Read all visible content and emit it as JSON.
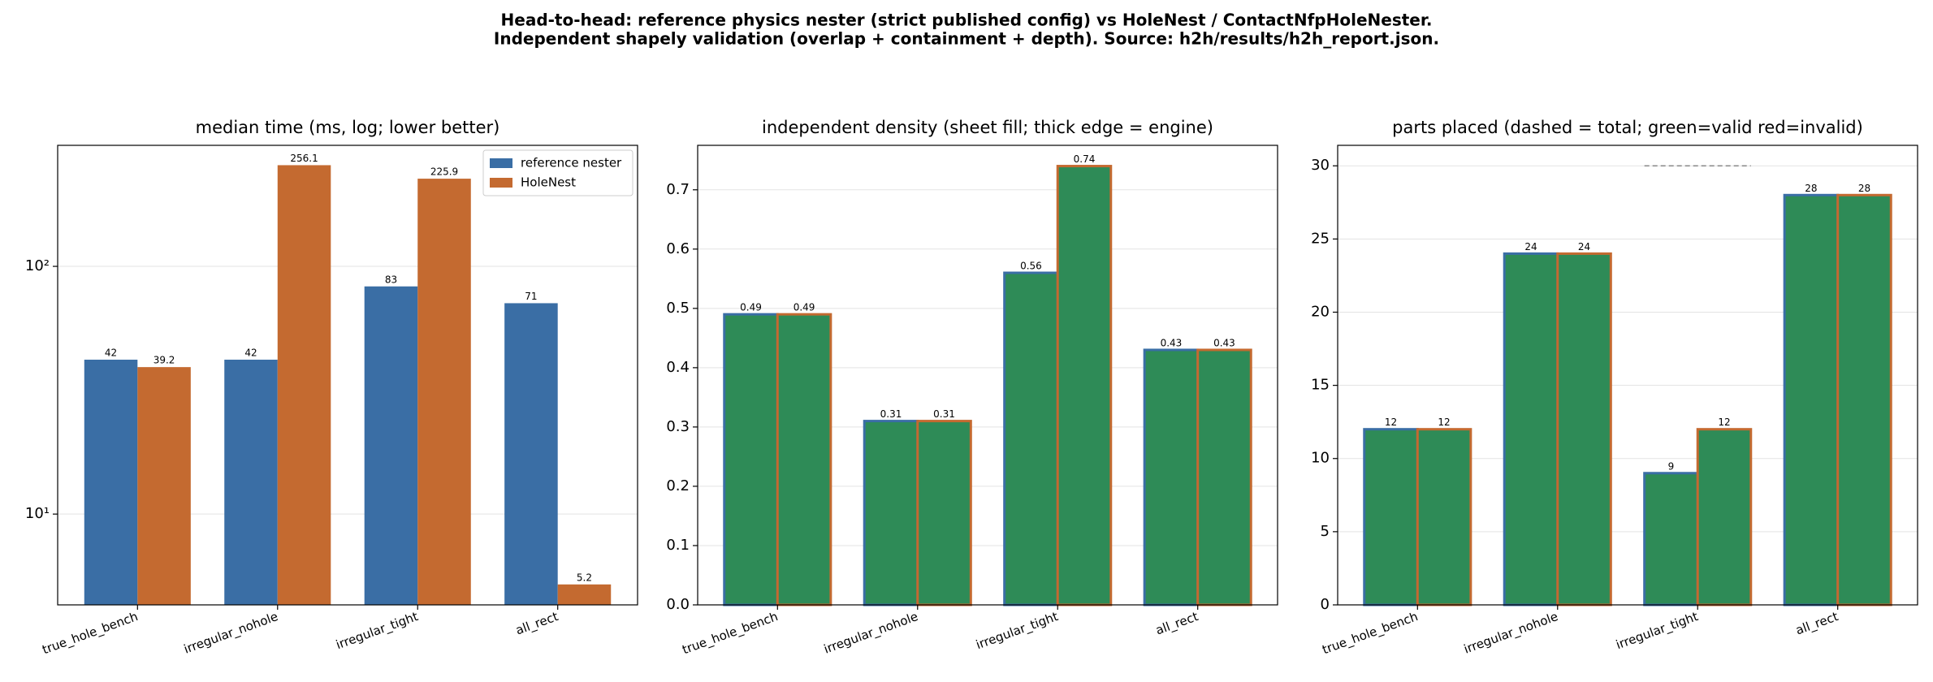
{
  "suptitle": [
    "Head-to-head: reference physics nester (strict published config) vs HoleNest / ContactNfpHoleNester.",
    "Independent shapely validation (overlap + containment + depth). Source: h2h/results/h2h_report.json."
  ],
  "chart_data": [
    {
      "type": "bar",
      "title": "median time (ms, log; lower better)",
      "log_y": true,
      "grid": true,
      "legend": "upper right",
      "categories": [
        "true_hole_bench",
        "irregular_nohole",
        "irregular_tight",
        "all_rect"
      ],
      "series": [
        {
          "name": "reference nester",
          "color": "#3a6ea5",
          "values": [
            42,
            42,
            83,
            71
          ]
        },
        {
          "name": "HoleNest",
          "color": "#c46a30",
          "values": [
            39.2,
            256.1,
            225.9,
            5.2
          ]
        }
      ],
      "ylim": [
        4.3,
        308
      ],
      "yticks": [
        {
          "value": 10,
          "label": "10¹"
        },
        {
          "value": 100,
          "label": "10²"
        }
      ]
    },
    {
      "type": "bar",
      "title": "independent density (sheet fill; thick edge = engine)",
      "grid": true,
      "fill_color": "#2e8b57",
      "categories": [
        "true_hole_bench",
        "irregular_nohole",
        "irregular_tight",
        "all_rect"
      ],
      "series": [
        {
          "name": "reference nester",
          "color": "#3a6ea5",
          "values": [
            0.49,
            0.31,
            0.56,
            0.43
          ]
        },
        {
          "name": "HoleNest",
          "color": "#c46a30",
          "values": [
            0.49,
            0.31,
            0.74,
            0.43
          ]
        }
      ],
      "ylim": [
        0,
        0.775
      ],
      "yticks": [
        {
          "value": 0,
          "label": "0.0"
        },
        0.1,
        0.2,
        0.3,
        0.4,
        0.5,
        0.6,
        0.7
      ]
    },
    {
      "type": "bar",
      "title": "parts placed (dashed = total; green=valid red=invalid)",
      "grid": true,
      "fill_color": "#2e8b57",
      "categories": [
        "true_hole_bench",
        "irregular_nohole",
        "irregular_tight",
        "all_rect"
      ],
      "series": [
        {
          "name": "reference nester",
          "color": "#3a6ea5",
          "values": [
            12,
            24,
            9,
            28
          ]
        },
        {
          "name": "HoleNest",
          "color": "#c46a30",
          "values": [
            12,
            24,
            12,
            28
          ]
        }
      ],
      "totals": [
        12,
        24,
        30,
        28
      ],
      "totals_color": "#888888",
      "ylim": [
        0,
        31.4
      ],
      "yticks": [
        0,
        5,
        10,
        15,
        20,
        25,
        30
      ]
    }
  ]
}
